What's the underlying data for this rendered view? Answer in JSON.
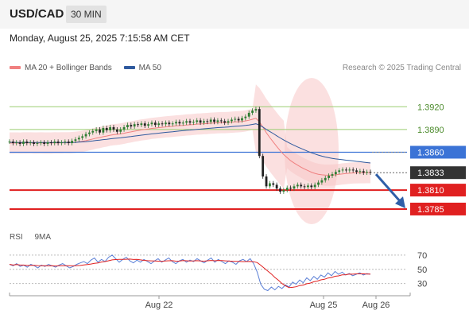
{
  "header": {
    "pair": "USD/CAD",
    "timeframe": "30 MIN"
  },
  "datetime": "Monday, August 25, 2025 7:15:58 AM CET",
  "legend": {
    "items": [
      {
        "label": "MA 20 + Bollinger Bands",
        "color": "#f08080"
      },
      {
        "label": "MA 50",
        "color": "#2f5a9e"
      }
    ],
    "credit": "Research © 2025 Trading Central"
  },
  "rsi_legend": {
    "items": [
      {
        "label": "RSI",
        "color": "#5b7fd6"
      },
      {
        "label": "9MA",
        "color": "#e02020"
      }
    ]
  },
  "colors": {
    "resistance": "#9acd70",
    "pivot": "#3b73d6",
    "support": "#e02020",
    "last_price": "#333333",
    "candle_up": "#2e7d32",
    "candle_down": "#222222",
    "bollinger_fill": "#f7c7c7",
    "arrow": "#2f5fa8"
  },
  "chart_data": {
    "type": "candlestick",
    "x_labels": [
      "Aug 22",
      "Aug 25",
      "Aug 26"
    ],
    "ylim": [
      1.3765,
      1.3935
    ],
    "levels": [
      {
        "label": "1.3920",
        "value": 1.392,
        "kind": "resistance"
      },
      {
        "label": "1.3890",
        "value": 1.389,
        "kind": "resistance"
      },
      {
        "label": "1.3860",
        "value": 1.386,
        "kind": "pivot"
      },
      {
        "label": "1.3833",
        "value": 1.3833,
        "kind": "last"
      },
      {
        "label": "1.3810",
        "value": 1.381,
        "kind": "support"
      },
      {
        "label": "1.3785",
        "value": 1.3785,
        "kind": "support"
      }
    ],
    "close": [
      1.3874,
      1.3872,
      1.3873,
      1.3871,
      1.3874,
      1.3872,
      1.3873,
      1.3871,
      1.3872,
      1.3873,
      1.3871,
      1.3873,
      1.3872,
      1.3874,
      1.3872,
      1.3873,
      1.3874,
      1.3872,
      1.3875,
      1.3877,
      1.3879,
      1.3881,
      1.3884,
      1.3886,
      1.3888,
      1.389,
      1.3886,
      1.3892,
      1.3889,
      1.3893,
      1.389,
      1.3887,
      1.389,
      1.3893,
      1.3896,
      1.3894,
      1.3897,
      1.3896,
      1.3898,
      1.3895,
      1.3897,
      1.3899,
      1.3896,
      1.3898,
      1.3897,
      1.3899,
      1.3897,
      1.3898,
      1.39,
      1.3898,
      1.3899,
      1.3901,
      1.3899,
      1.39,
      1.3902,
      1.3899,
      1.3901,
      1.39,
      1.3903,
      1.39,
      1.3902,
      1.3901,
      1.3899,
      1.3901,
      1.3903,
      1.3904,
      1.3902,
      1.3905,
      1.3907,
      1.3912,
      1.3915,
      1.3917,
      1.3855,
      1.3828,
      1.3815,
      1.3819,
      1.3817,
      1.3812,
      1.3808,
      1.381,
      1.3813,
      1.3812,
      1.3815,
      1.3817,
      1.3815,
      1.3814,
      1.3816,
      1.3814,
      1.3817,
      1.382,
      1.3823,
      1.3826,
      1.3829,
      1.3831,
      1.3834,
      1.3836,
      1.3837,
      1.3836,
      1.3837,
      1.3836,
      1.3834,
      1.3835,
      1.3833,
      1.3834,
      1.3833
    ],
    "ma20_start": 1.3872,
    "ma50_start": 1.3873,
    "bollinger_band_width": 0.0014,
    "rsi": {
      "levels": [
        70,
        50,
        30
      ],
      "ylim": [
        15,
        80
      ],
      "rsi_values": [
        57,
        55,
        58,
        54,
        56,
        53,
        57,
        55,
        52,
        56,
        54,
        57,
        55,
        53,
        56,
        58,
        55,
        52,
        54,
        57,
        59,
        61,
        58,
        63,
        66,
        60,
        64,
        61,
        67,
        70,
        65,
        60,
        64,
        67,
        62,
        59,
        63,
        60,
        64,
        61,
        58,
        62,
        65,
        60,
        63,
        66,
        61,
        58,
        62,
        64,
        60,
        63,
        61,
        65,
        62,
        59,
        63,
        66,
        60,
        64,
        61,
        58,
        62,
        60,
        57,
        62,
        64,
        61,
        65,
        58,
        46,
        29,
        22,
        20,
        25,
        21,
        26,
        23,
        28,
        25,
        32,
        29,
        35,
        31,
        38,
        34,
        40,
        36,
        42,
        39,
        45,
        41,
        47,
        43,
        46,
        42,
        44,
        41,
        43,
        45,
        42,
        44,
        43
      ]
    }
  }
}
